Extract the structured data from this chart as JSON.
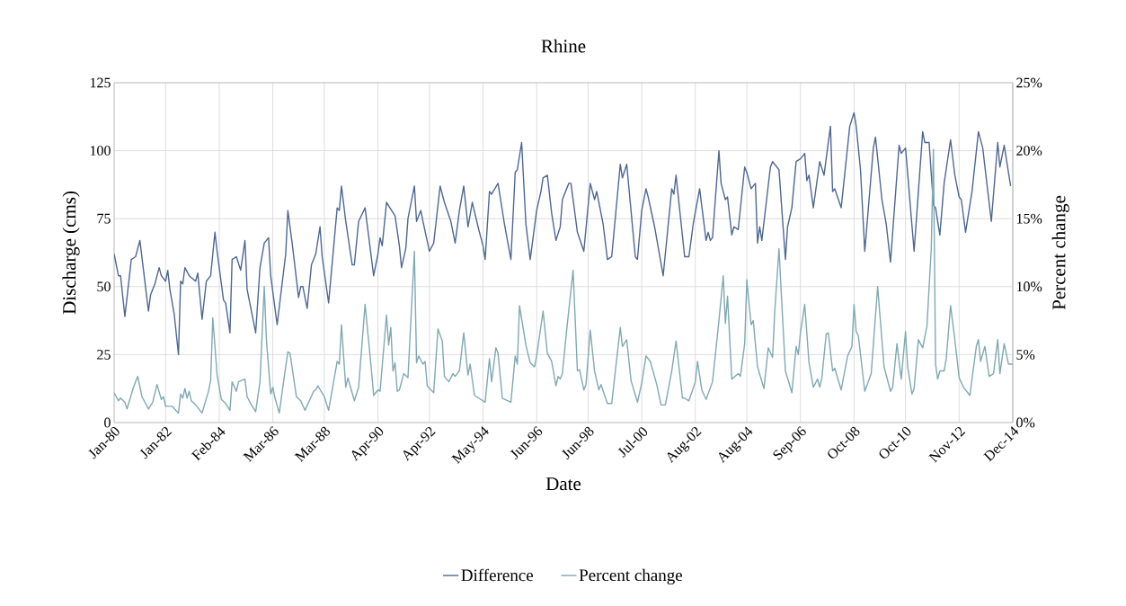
{
  "chart_data": {
    "type": "line",
    "title": "Rhine",
    "xlabel": "Date",
    "ylabel": "Discharge (cms)",
    "y2label": "Percent change",
    "xlim": [
      "1980-01",
      "2014-12"
    ],
    "xticks": [
      {
        "value": "1980-01",
        "label": "Jan-80"
      },
      {
        "value": "1982-01",
        "label": "Jan-82"
      },
      {
        "value": "1984-02",
        "label": "Feb-84"
      },
      {
        "value": "1986-03",
        "label": "Mar-86"
      },
      {
        "value": "1988-03",
        "label": "Mar-88"
      },
      {
        "value": "1990-04",
        "label": "Apr-90"
      },
      {
        "value": "1992-04",
        "label": "Apr-92"
      },
      {
        "value": "1994-05",
        "label": "May-94"
      },
      {
        "value": "1996-06",
        "label": "Jun-96"
      },
      {
        "value": "1998-06",
        "label": "Jun-98"
      },
      {
        "value": "2000-07",
        "label": "Jul-00"
      },
      {
        "value": "2002-08",
        "label": "Aug-02"
      },
      {
        "value": "2004-08",
        "label": "Aug-04"
      },
      {
        "value": "2006-09",
        "label": "Sep-06"
      },
      {
        "value": "2008-10",
        "label": "Oct-08"
      },
      {
        "value": "2010-10",
        "label": "Oct-10"
      },
      {
        "value": "2012-11",
        "label": "Nov-12"
      },
      {
        "value": "2014-12",
        "label": "Dec-14"
      }
    ],
    "ylim": [
      0,
      125
    ],
    "yticks": [
      0,
      25,
      50,
      75,
      100,
      125
    ],
    "y2lim": [
      0,
      25
    ],
    "y2ticks": [
      {
        "value": 0,
        "label": "0%"
      },
      {
        "value": 5,
        "label": "5%"
      },
      {
        "value": 10,
        "label": "10%"
      },
      {
        "value": 15,
        "label": "15%"
      },
      {
        "value": 20,
        "label": "20%"
      },
      {
        "value": 25,
        "label": "25%"
      }
    ],
    "grid": true,
    "legend": "bottom",
    "series": [
      {
        "name": "Difference",
        "color": "#4e6795",
        "x": [
          "1980-01",
          "1980-03",
          "1980-04",
          "1980-06",
          "1980-09",
          "1980-11",
          "1981-01",
          "1981-03",
          "1981-05",
          "1981-06",
          "1981-08",
          "1981-10",
          "1981-11",
          "1982-01",
          "1982-02",
          "1982-03",
          "1982-05",
          "1982-07",
          "1982-08",
          "1982-09",
          "1982-10",
          "1982-12",
          "1983-03",
          "1983-04",
          "1983-06",
          "1983-08",
          "1983-10",
          "1983-12",
          "1984-01",
          "1984-04",
          "1984-05",
          "1984-07",
          "1984-08",
          "1984-10",
          "1984-12",
          "1985-02",
          "1985-03",
          "1985-07",
          "1985-09",
          "1985-11",
          "1986-01",
          "1986-02",
          "1986-05",
          "1986-09",
          "1986-10",
          "1986-12",
          "1987-03",
          "1987-04",
          "1987-05",
          "1987-07",
          "1987-09",
          "1987-11",
          "1988-01",
          "1988-02",
          "1988-05",
          "1988-09",
          "1988-10",
          "1988-11",
          "1989-01",
          "1989-04",
          "1989-05",
          "1989-07",
          "1989-10",
          "1990-02",
          "1990-04",
          "1990-05",
          "1990-06",
          "1990-08",
          "1990-12",
          "1991-02",
          "1991-03",
          "1991-05",
          "1991-06",
          "1991-09",
          "1991-10",
          "1991-12",
          "1992-01",
          "1992-04",
          "1992-06",
          "1992-09",
          "1992-11",
          "1993-02",
          "1993-04",
          "1993-06",
          "1993-08",
          "1993-10",
          "1993-12",
          "1994-03",
          "1994-05",
          "1994-06",
          "1994-08",
          "1994-09",
          "1994-12",
          "1995-03",
          "1995-06",
          "1995-08",
          "1995-09",
          "1995-11",
          "1996-01",
          "1996-03",
          "1996-06",
          "1996-08",
          "1996-09",
          "1996-11",
          "1997-01",
          "1997-03",
          "1997-05",
          "1997-06",
          "1997-09",
          "1997-10",
          "1998-01",
          "1998-04",
          "1998-07",
          "1998-09",
          "1998-10",
          "1999-01",
          "1999-03",
          "1999-05",
          "1999-09",
          "1999-10",
          "1999-12",
          "2000-02",
          "2000-04",
          "2000-05",
          "2000-07",
          "2000-09",
          "2000-10",
          "2001-01",
          "2001-05",
          "2001-09",
          "2001-10",
          "2001-11",
          "2002-01",
          "2002-03",
          "2002-05",
          "2002-07",
          "2002-10",
          "2003-01",
          "2003-02",
          "2003-03",
          "2003-04",
          "2003-07",
          "2003-08",
          "2003-10",
          "2003-11",
          "2004-01",
          "2004-02",
          "2004-04",
          "2004-07",
          "2004-08",
          "2004-10",
          "2004-12",
          "2005-01",
          "2005-02",
          "2005-03",
          "2005-07",
          "2005-08",
          "2005-10",
          "2005-11",
          "2006-02",
          "2006-03",
          "2006-05",
          "2006-07",
          "2006-09",
          "2006-11",
          "2006-12",
          "2007-01",
          "2007-03",
          "2007-06",
          "2007-08",
          "2007-11",
          "2007-12",
          "2008-01",
          "2008-04",
          "2008-08",
          "2008-10",
          "2008-11",
          "2009-01",
          "2009-03",
          "2009-07",
          "2009-08",
          "2009-11",
          "2010-01",
          "2010-03",
          "2010-07",
          "2010-08",
          "2010-10",
          "2011-02",
          "2011-06",
          "2011-07",
          "2011-09",
          "2011-11",
          "2011-12",
          "2012-02",
          "2012-04",
          "2012-07",
          "2012-09",
          "2012-11",
          "2012-12",
          "2013-02",
          "2013-05",
          "2013-08",
          "2013-10",
          "2014-02",
          "2014-05",
          "2014-06",
          "2014-08",
          "2014-11"
        ],
        "values": [
          62,
          54,
          54,
          39,
          60,
          61,
          67,
          54,
          41,
          47,
          51,
          57,
          54,
          52,
          56,
          49,
          40,
          25,
          52,
          51,
          57,
          54,
          52,
          55,
          38,
          52,
          54,
          70,
          63,
          45,
          44,
          33,
          60,
          61,
          56,
          67,
          49,
          33,
          57,
          66,
          68,
          54,
          36,
          62,
          78,
          66,
          46,
          50,
          50,
          42,
          58,
          62,
          72,
          61,
          44,
          79,
          78,
          87,
          74,
          58,
          58,
          74,
          79,
          54,
          62,
          68,
          65,
          81,
          76,
          65,
          57,
          64,
          75,
          87,
          74,
          78,
          74,
          63,
          66,
          87,
          81,
          74,
          66,
          78,
          87,
          72,
          81,
          71,
          65,
          60,
          85,
          84,
          88,
          73,
          60,
          92,
          93,
          103,
          73,
          60,
          78,
          85,
          90,
          91,
          77,
          67,
          72,
          82,
          88,
          88,
          70,
          63,
          88,
          82,
          85,
          73,
          60,
          61,
          95,
          90,
          95,
          78,
          61,
          60,
          78,
          86,
          83,
          72,
          54,
          86,
          84,
          91,
          76,
          61,
          61,
          73,
          86,
          67,
          70,
          67,
          68,
          100,
          88,
          82,
          83,
          69,
          72,
          71,
          94,
          92,
          86,
          88,
          66,
          72,
          67,
          94,
          96,
          94,
          93,
          60,
          72,
          79,
          96,
          97,
          99,
          89,
          91,
          79,
          96,
          91,
          109,
          85,
          86,
          79,
          109,
          114,
          109,
          93,
          63,
          101,
          105,
          82,
          73,
          59,
          102,
          99,
          101,
          63,
          107,
          103,
          103,
          80,
          79,
          69,
          88,
          104,
          91,
          83,
          82,
          70,
          85,
          107,
          101,
          74,
          103,
          94,
          102,
          87
        ]
      },
      {
        "name": "Percent change",
        "color": "#7fa9b3",
        "axis": "y2",
        "x": [
          "1980-01",
          "1980-03",
          "1980-04",
          "1980-06",
          "1980-07",
          "1980-10",
          "1980-12",
          "1981-02",
          "1981-05",
          "1981-07",
          "1981-09",
          "1981-11",
          "1981-12",
          "1982-01",
          "1982-04",
          "1982-07",
          "1982-08",
          "1982-09",
          "1982-10",
          "1982-11",
          "1982-12",
          "1983-01",
          "1983-03",
          "1983-06",
          "1983-09",
          "1983-10",
          "1983-11",
          "1984-01",
          "1984-03",
          "1984-05",
          "1984-07",
          "1984-08",
          "1984-10",
          "1984-11",
          "1985-02",
          "1985-03",
          "1985-05",
          "1985-07",
          "1985-09",
          "1985-11",
          "1985-12",
          "1986-02",
          "1986-03",
          "1986-04",
          "1986-06",
          "1986-08",
          "1986-10",
          "1986-11",
          "1987-02",
          "1987-04",
          "1987-06",
          "1987-10",
          "1987-11",
          "1987-12",
          "1988-03",
          "1988-05",
          "1988-09",
          "1988-10",
          "1988-11",
          "1989-01",
          "1989-02",
          "1989-05",
          "1989-07",
          "1989-10",
          "1990-01",
          "1990-02",
          "1990-04",
          "1990-05",
          "1990-08",
          "1990-09",
          "1990-10",
          "1990-11",
          "1990-12",
          "1991-01",
          "1991-02",
          "1991-04",
          "1991-06",
          "1991-09",
          "1991-10",
          "1991-11",
          "1992-01",
          "1992-02",
          "1992-03",
          "1992-06",
          "1992-08",
          "1992-10",
          "1992-11",
          "1993-01",
          "1993-03",
          "1993-04",
          "1993-06",
          "1993-08",
          "1993-10",
          "1993-11",
          "1994-01",
          "1994-03",
          "1994-06",
          "1994-08",
          "1994-09",
          "1994-11",
          "1994-12",
          "1995-02",
          "1995-06",
          "1995-08",
          "1995-09",
          "1995-10",
          "1996-01",
          "1996-03",
          "1996-05",
          "1996-06",
          "1996-09",
          "1996-11",
          "1997-01",
          "1997-03",
          "1997-04",
          "1997-05",
          "1997-06",
          "1997-08",
          "1997-11",
          "1998-01",
          "1998-02",
          "1998-04",
          "1998-05",
          "1998-07",
          "1998-09",
          "1998-11",
          "1998-12",
          "1999-03",
          "1999-05",
          "1999-09",
          "1999-10",
          "1999-12",
          "2000-02",
          "2000-05",
          "2000-07",
          "2000-09",
          "2000-11",
          "2001-02",
          "2001-04",
          "2001-06",
          "2001-09",
          "2001-11",
          "2002-02",
          "2002-03",
          "2002-05",
          "2002-08",
          "2002-09",
          "2002-11",
          "2003-01",
          "2003-04",
          "2003-07",
          "2003-09",
          "2003-10",
          "2003-11",
          "2004-01",
          "2004-04",
          "2004-05",
          "2004-07",
          "2004-08",
          "2004-10",
          "2004-11",
          "2005-01",
          "2005-04",
          "2005-06",
          "2005-08",
          "2005-09",
          "2005-11",
          "2005-12",
          "2006-02",
          "2006-05",
          "2006-07",
          "2006-08",
          "2006-09",
          "2006-11",
          "2007-01",
          "2007-03",
          "2007-05",
          "2007-06",
          "2007-07",
          "2007-09",
          "2007-10",
          "2007-12",
          "2008-01",
          "2008-04",
          "2008-07",
          "2008-09",
          "2008-10",
          "2008-11",
          "2008-12",
          "2009-03",
          "2009-06",
          "2009-09",
          "2009-12",
          "2010-03",
          "2010-04",
          "2010-06",
          "2010-08",
          "2010-10",
          "2010-11",
          "2011-01",
          "2011-02",
          "2011-04",
          "2011-06",
          "2011-08",
          "2011-10",
          "2011-11",
          "2011-12",
          "2012-01",
          "2012-02",
          "2012-04",
          "2012-05",
          "2012-07",
          "2012-09",
          "2012-11",
          "2013-01",
          "2013-04",
          "2013-07",
          "2013-08",
          "2013-09",
          "2013-11",
          "2014-01",
          "2014-03",
          "2014-05",
          "2014-06",
          "2014-08",
          "2014-10",
          "2014-12"
        ],
        "values": [
          2.2,
          1.6,
          1.8,
          1.5,
          1.0,
          2.6,
          3.4,
          1.9,
          1.0,
          1.5,
          2.8,
          1.7,
          1.9,
          1.2,
          1.2,
          0.7,
          2.1,
          1.8,
          2.5,
          1.8,
          2.3,
          1.6,
          1.3,
          0.7,
          2.3,
          3.1,
          7.7,
          3.5,
          1.7,
          1.4,
          0.9,
          3.0,
          2.3,
          3.0,
          3.2,
          1.9,
          1.3,
          0.8,
          3.0,
          10.0,
          6.1,
          2.1,
          2.6,
          1.8,
          0.7,
          3.0,
          5.2,
          5.1,
          1.9,
          1.6,
          0.9,
          2.3,
          2.4,
          2.7,
          1.9,
          0.9,
          4.5,
          4.3,
          7.2,
          2.6,
          3.3,
          1.6,
          2.6,
          8.7,
          3.8,
          2.0,
          2.4,
          2.3,
          7.9,
          5.7,
          7.0,
          3.8,
          4.4,
          2.3,
          2.4,
          3.6,
          3.3,
          12.6,
          4.4,
          4.9,
          4.3,
          4.5,
          2.7,
          2.2,
          6.9,
          6.0,
          3.4,
          3.0,
          3.6,
          3.4,
          3.8,
          6.6,
          3.5,
          4.3,
          2.0,
          1.8,
          1.5,
          4.7,
          3.0,
          5.5,
          5.1,
          1.8,
          1.5,
          4.9,
          4.3,
          8.6,
          5.7,
          4.4,
          4.1,
          4.9,
          8.2,
          5.1,
          4.5,
          2.7,
          3.4,
          3.2,
          3.6,
          6.8,
          11.2,
          3.8,
          3.9,
          2.4,
          2.8,
          6.8,
          3.8,
          2.4,
          2.8,
          1.4,
          1.4,
          7.0,
          5.6,
          6.1,
          3.1,
          1.5,
          2.9,
          4.9,
          4.5,
          2.8,
          1.3,
          1.3,
          3.8,
          6.0,
          1.8,
          1.8,
          1.6,
          3.0,
          4.5,
          2.4,
          1.7,
          3.0,
          7.5,
          10.8,
          7.3,
          9.3,
          3.2,
          3.6,
          3.4,
          5.8,
          10.5,
          7.2,
          7.5,
          4.1,
          2.5,
          5.5,
          4.8,
          8.1,
          12.8,
          9.7,
          3.8,
          2.2,
          5.6,
          5.0,
          6.6,
          8.7,
          4.4,
          2.6,
          3.2,
          2.6,
          3.3,
          6.5,
          6.6,
          3.8,
          4.0,
          2.4,
          4.9,
          5.6,
          8.7,
          6.7,
          6.4,
          2.3,
          3.6,
          10.0,
          4.1,
          2.3,
          2.6,
          5.8,
          3.2,
          6.7,
          4.1,
          2.1,
          2.5,
          6.1,
          5.5,
          7.1,
          12.8,
          20.1,
          4.3,
          3.2,
          3.8,
          3.8,
          4.7,
          8.6,
          6.1,
          3.3,
          2.6,
          2.0,
          5.6,
          6.1,
          4.5,
          5.6,
          3.4,
          3.6,
          6.1,
          3.6,
          5.8,
          4.3,
          4.3
        ]
      }
    ]
  }
}
